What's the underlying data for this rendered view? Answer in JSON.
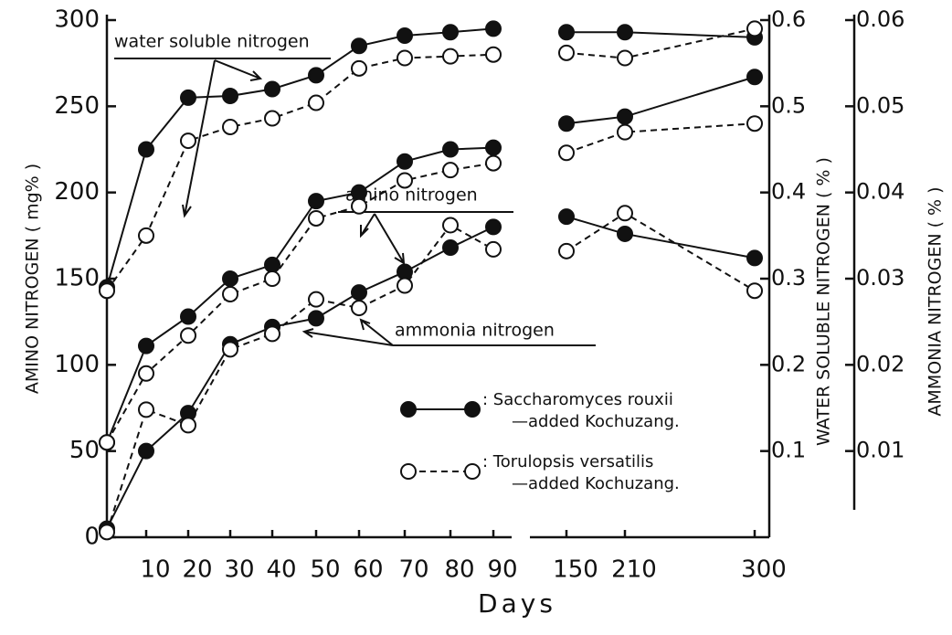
{
  "chart_data": {
    "type": "line",
    "x_label": "Days",
    "y_label": "AMINO NITROGEN ( mg% )",
    "y2_label": "WATER SOLUBLE NITROGEN ( % )",
    "y3_label": "AMMONIA NITROGEN ( % )",
    "categories": [
      null,
      "10",
      "20",
      "30",
      "40",
      "50",
      "60",
      "70",
      "80",
      "90",
      "150",
      "210",
      "300"
    ],
    "ylim": [
      0,
      300
    ],
    "yticks": [
      0,
      50,
      100,
      150,
      200,
      250,
      300
    ],
    "y2lim": [
      0,
      0.6
    ],
    "y2ticks": [
      0.1,
      0.2,
      0.3,
      0.4,
      0.5,
      0.6
    ],
    "y3lim": [
      0,
      0.06
    ],
    "y3ticks": [
      0.01,
      0.02,
      0.03,
      0.04,
      0.05,
      0.06
    ],
    "series": [
      {
        "axis": "y2",
        "style": "solid",
        "values": [
          0.29,
          0.45,
          0.51,
          0.512,
          0.52,
          0.536,
          0.57,
          0.582,
          0.586,
          0.59,
          0.586,
          0.586,
          0.58
        ]
      },
      {
        "axis": "y2",
        "style": "dashed",
        "values": [
          0.286,
          0.35,
          0.46,
          0.476,
          0.486,
          0.504,
          0.544,
          0.556,
          0.558,
          0.56,
          0.562,
          0.556,
          0.59
        ]
      },
      {
        "axis": "y",
        "style": "solid",
        "values": [
          55,
          111,
          128,
          150,
          158,
          195,
          200,
          218,
          225,
          226,
          240,
          244,
          267
        ]
      },
      {
        "axis": "y",
        "style": "dashed",
        "values": [
          55,
          95,
          117,
          141,
          150,
          185,
          192,
          207,
          213,
          217,
          223,
          235,
          240
        ]
      },
      {
        "axis": "y3",
        "style": "solid",
        "values": [
          0.001,
          0.01,
          0.0144,
          0.0224,
          0.0244,
          0.0254,
          0.0284,
          0.0308,
          0.0336,
          0.036,
          0.0372,
          0.0352,
          0.0324
        ]
      },
      {
        "axis": "y3",
        "style": "dashed",
        "values": [
          0.0006,
          0.0148,
          0.013,
          0.0218,
          0.0236,
          0.0276,
          0.0266,
          0.0292,
          0.0362,
          0.0334,
          0.0332,
          0.0376,
          0.0286
        ]
      }
    ],
    "annotations": [
      "water soluble nitrogen",
      "amino nitrogen",
      "ammonia nitrogen"
    ],
    "legend": [
      {
        "style": "solid",
        "lines": [
          ": Saccharomyces rouxii",
          "—added Kochuzang."
        ]
      },
      {
        "style": "dashed",
        "lines": [
          ": Torulopsis versatilis",
          "—added Kochuzang."
        ]
      }
    ]
  }
}
